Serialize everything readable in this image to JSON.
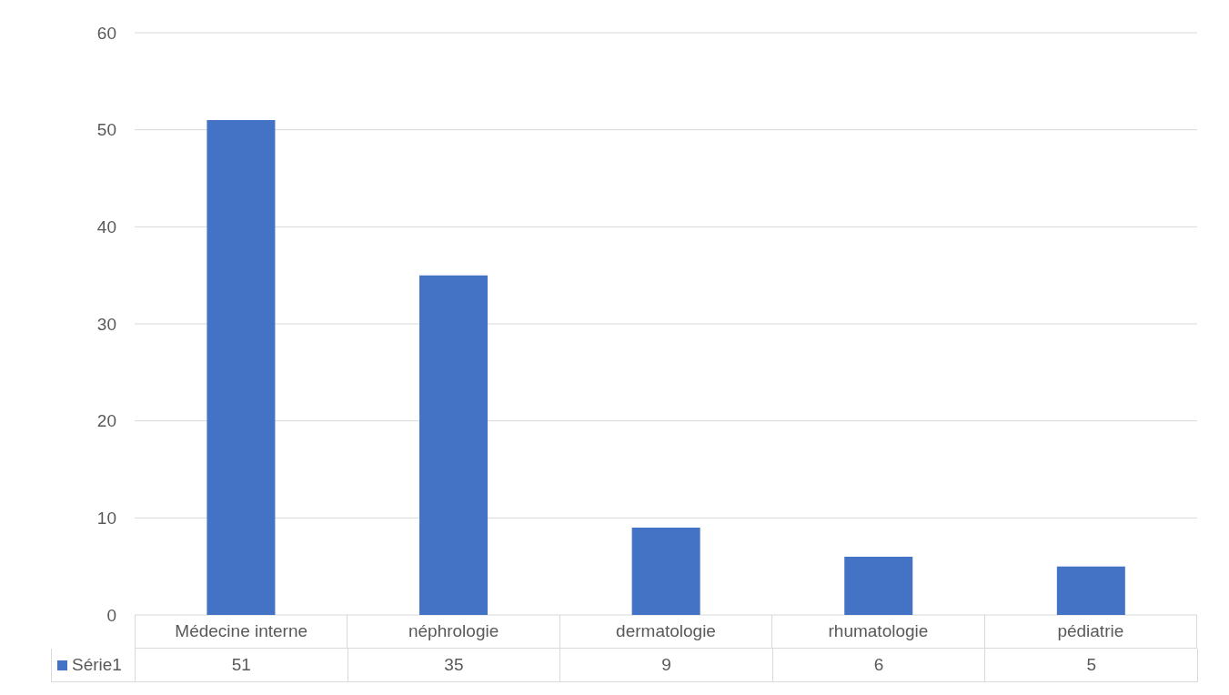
{
  "chart_data": {
    "type": "bar",
    "categories": [
      "Médecine interne",
      "néphrologie",
      "dermatologie",
      "rhumatologie",
      "pédiatrie"
    ],
    "series": [
      {
        "name": "Série1",
        "color": "#4472c4",
        "values": [
          51,
          35,
          9,
          6,
          5
        ]
      }
    ],
    "ylim": [
      0,
      60
    ],
    "yticks": [
      0,
      10,
      20,
      30,
      40,
      50,
      60
    ],
    "grid": "y",
    "data_labels": true
  }
}
